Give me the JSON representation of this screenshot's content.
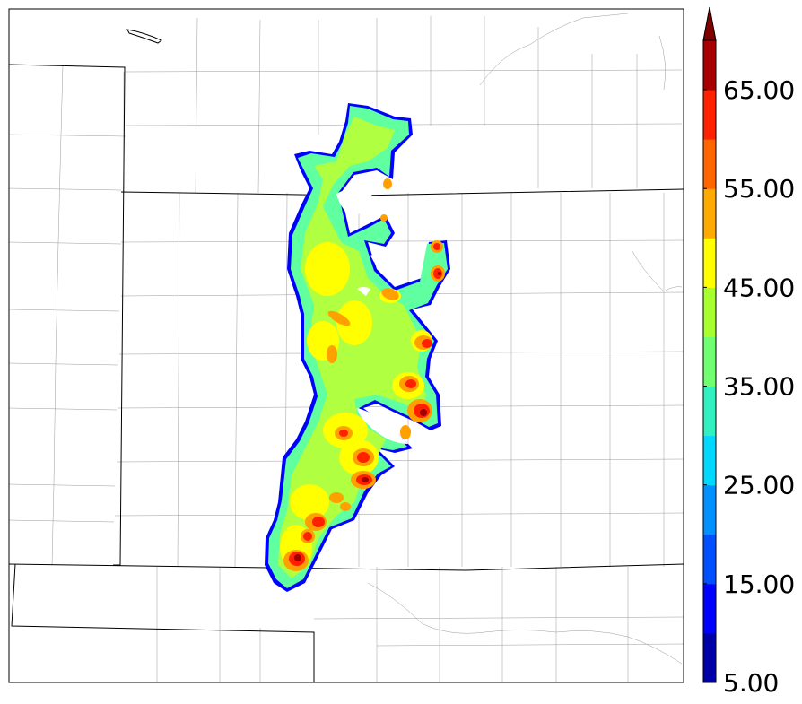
{
  "colorbar": {
    "labels": [
      "5.00",
      "15.00",
      "25.00",
      "35.00",
      "45.00",
      "55.00",
      "65.00"
    ],
    "colors": [
      "#0000a8",
      "#0000ff",
      "#0050ff",
      "#0090ff",
      "#00d8ff",
      "#30f0c0",
      "#70ff70",
      "#a8ff30",
      "#ffff00",
      "#ffaa00",
      "#ff6600",
      "#ff2200",
      "#a80000"
    ],
    "extend_color": "#800000",
    "min": 5,
    "max": 70,
    "step": 5
  },
  "map": {
    "field_colors": {
      "outline": "#0000ff",
      "cyan": "#40e8d0",
      "green": "#80ff80",
      "yellow_green": "#c0ff40",
      "yellow": "#ffff00",
      "orange": "#ffa000",
      "red": "#ff2000",
      "dark_red": "#a00000"
    }
  }
}
